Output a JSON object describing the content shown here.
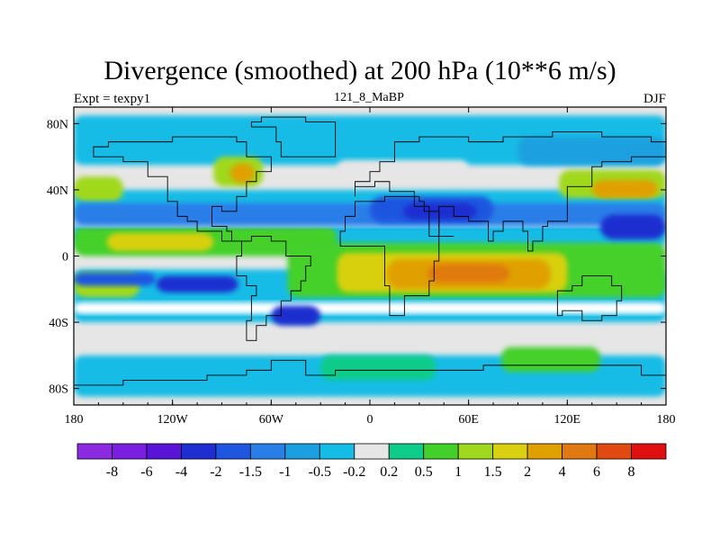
{
  "header": {
    "title": "Divergence (smoothed) at 200 hPa (10**6 m/s)",
    "left_label": "Expt = texpy1",
    "center_label": "121_8_MaBP",
    "right_label": "DJF"
  },
  "map": {
    "projection": "cylindrical-equidistant",
    "lon_range": [
      -180,
      180
    ],
    "lat_range": [
      -90,
      90
    ],
    "background_color": "#e6e6e6",
    "coastlines": true,
    "x_ticks": [
      {
        "value": -180,
        "label": "180"
      },
      {
        "value": -120,
        "label": "120W"
      },
      {
        "value": -60,
        "label": "60W"
      },
      {
        "value": 0,
        "label": "0"
      },
      {
        "value": 60,
        "label": "60E"
      },
      {
        "value": 120,
        "label": "120E"
      },
      {
        "value": 180,
        "label": "180"
      }
    ],
    "y_ticks": [
      {
        "value": 80,
        "label": "80N"
      },
      {
        "value": 40,
        "label": "40N"
      },
      {
        "value": 0,
        "label": "0"
      },
      {
        "value": -40,
        "label": "40S"
      },
      {
        "value": -80,
        "label": "80S"
      }
    ]
  },
  "colorbar": {
    "colors": [
      "#8a2be2",
      "#7a1fe0",
      "#5a14d8",
      "#1f2ed0",
      "#1f56e0",
      "#2a7ee8",
      "#1aa0e0",
      "#14bce6",
      "#e6e6e6",
      "#10cc8a",
      "#44d02a",
      "#a0d81e",
      "#d8d010",
      "#e0a000",
      "#e07a10",
      "#e04a10",
      "#e01010"
    ],
    "labels": [
      "-8",
      "-6",
      "-4",
      "-2",
      "-1.5",
      "-1",
      "-0.5",
      "-0.2",
      "0.2",
      "0.5",
      "1",
      "1.5",
      "2",
      "4",
      "6",
      "8"
    ]
  },
  "chart_data": {
    "type": "heatmap",
    "title": "Divergence (smoothed) at 200 hPa (10**6 m/s)",
    "variable": "divergence",
    "level_hPa": 200,
    "units": "10**6 m/s",
    "experiment": "texpy1",
    "case": "121_8_MaBP",
    "season": "DJF",
    "contour_levels": [
      -8,
      -6,
      -4,
      -2,
      -1.5,
      -1,
      -0.5,
      -0.2,
      0.2,
      0.5,
      1,
      1.5,
      2,
      4,
      6,
      8
    ],
    "x_range": [
      -180,
      180
    ],
    "y_range": [
      -90,
      90
    ],
    "features": [
      {
        "lon": [
          -50,
          90
        ],
        "lat": [
          -20,
          5
        ],
        "category": "divergence maximum",
        "level": "4 to 6"
      },
      {
        "lon": [
          -150,
          -100
        ],
        "lat": [
          3,
          12
        ],
        "category": "divergence",
        "level": "1.5 to 2"
      },
      {
        "lon": [
          -120,
          -80
        ],
        "lat": [
          -22,
          -12
        ],
        "category": "convergence",
        "level": "-2 to -4"
      },
      {
        "lon": [
          0,
          75
        ],
        "lat": [
          20,
          35
        ],
        "category": "convergence",
        "level": "-2 to -4"
      },
      {
        "lon": [
          140,
          180
        ],
        "lat": [
          10,
          25
        ],
        "category": "convergence",
        "level": "-2 to -4"
      },
      {
        "lon": [
          140,
          175
        ],
        "lat": [
          33,
          45
        ],
        "category": "divergence",
        "level": "2 to 4"
      }
    ]
  }
}
